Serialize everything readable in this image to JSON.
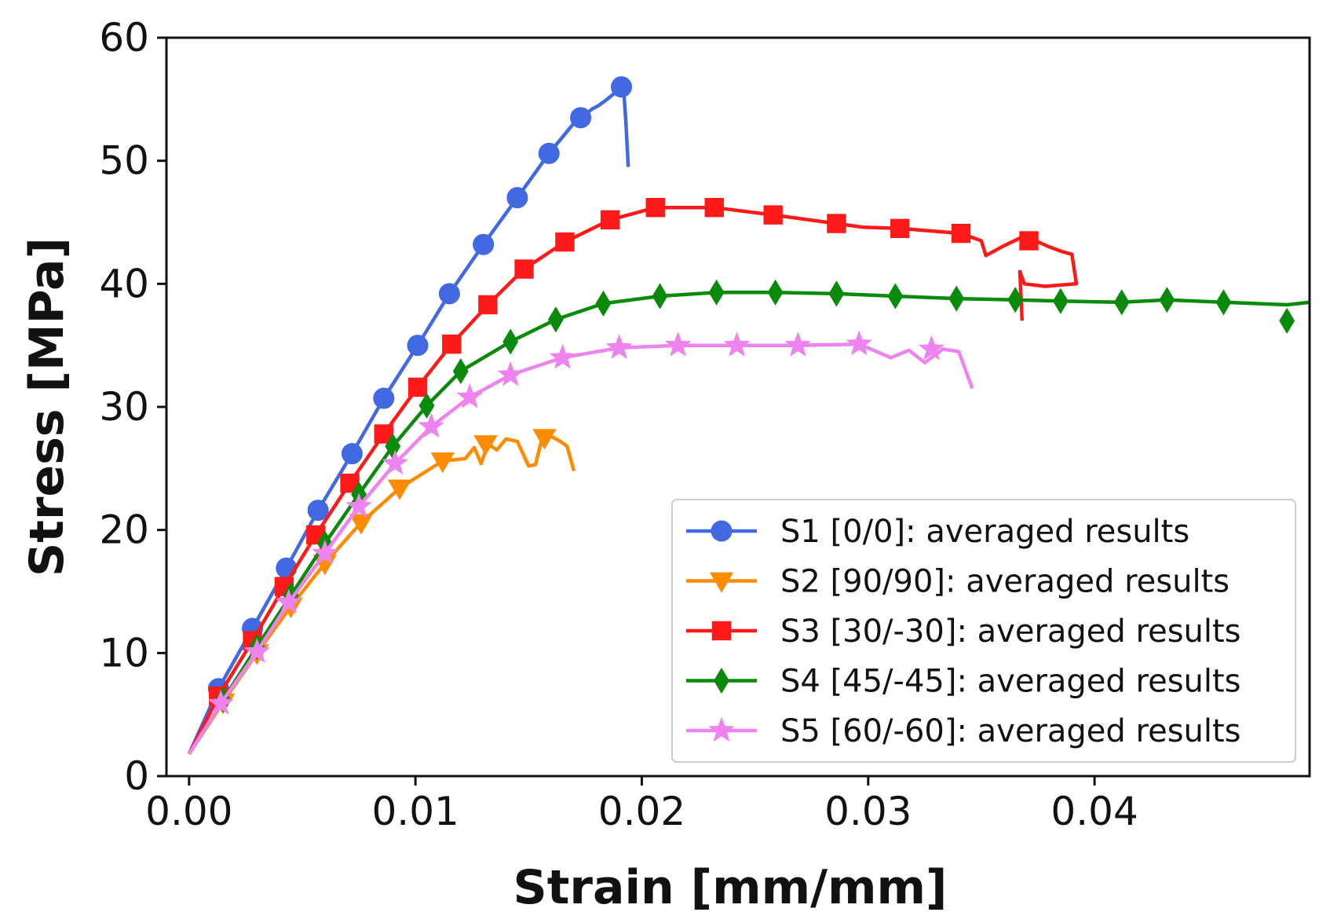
{
  "chart_data": {
    "type": "line",
    "title": "",
    "xlabel": "Strain [mm/mm]",
    "ylabel": "Stress [MPa]",
    "xlim": [
      -0.001,
      0.0495
    ],
    "ylim": [
      0,
      60
    ],
    "xticks": [
      0.0,
      0.01,
      0.02,
      0.03,
      0.04
    ],
    "xtick_labels": [
      "0.00",
      "0.01",
      "0.02",
      "0.03",
      "0.04"
    ],
    "yticks": [
      0,
      10,
      20,
      30,
      40,
      50,
      60
    ],
    "ytick_labels": [
      "0",
      "10",
      "20",
      "30",
      "40",
      "50",
      "60"
    ],
    "grid": false,
    "legend_position": "lower-right",
    "series": [
      {
        "name": "S1 [0/0]: averaged results",
        "color": "#4169e1",
        "marker": "circle",
        "x": [
          0.0,
          0.0013,
          0.0028,
          0.0043,
          0.0057,
          0.0072,
          0.0086,
          0.0101,
          0.0115,
          0.013,
          0.0145,
          0.0159,
          0.0172,
          0.0176,
          0.0178,
          0.0181,
          0.0184,
          0.0186,
          0.0188,
          0.019,
          0.0191,
          0.0192,
          0.0193,
          0.0194
        ],
        "y": [
          1.8,
          7.1,
          12.0,
          16.9,
          21.6,
          26.2,
          30.7,
          35.0,
          39.2,
          43.2,
          47.0,
          50.6,
          53.5,
          53.9,
          54.2,
          54.5,
          54.9,
          55.2,
          55.5,
          56.0,
          55.6,
          55.8,
          53.0,
          49.5
        ],
        "marker_x": [
          0.0013,
          0.0028,
          0.0043,
          0.0057,
          0.0072,
          0.0086,
          0.0101,
          0.0115,
          0.013,
          0.0145,
          0.0159,
          0.0173,
          0.0191
        ],
        "marker_y": [
          7.1,
          12.0,
          16.9,
          21.6,
          26.2,
          30.7,
          35.0,
          39.2,
          43.2,
          47.0,
          50.6,
          53.5,
          56.0
        ]
      },
      {
        "name": "S2 [90/90]: averaged results",
        "color": "#ff8c00",
        "marker": "triangle-down",
        "x": [
          0.0,
          0.0015,
          0.003,
          0.0045,
          0.006,
          0.0076,
          0.0093,
          0.0112,
          0.0122,
          0.0126,
          0.0129,
          0.0132,
          0.0136,
          0.014,
          0.0145,
          0.015,
          0.0153,
          0.0156,
          0.016,
          0.0164,
          0.0167,
          0.017
        ],
        "y": [
          1.8,
          6.0,
          10.0,
          13.8,
          17.3,
          20.6,
          23.4,
          25.6,
          25.8,
          26.7,
          25.4,
          27.0,
          26.5,
          27.4,
          27.2,
          25.2,
          25.3,
          27.5,
          27.6,
          27.2,
          26.8,
          24.8
        ],
        "marker_x": [
          0.0015,
          0.003,
          0.0045,
          0.006,
          0.0076,
          0.0093,
          0.0112,
          0.0131,
          0.0157
        ],
        "marker_y": [
          6.0,
          10.0,
          13.8,
          17.3,
          20.6,
          23.4,
          25.6,
          27.0,
          27.5
        ]
      },
      {
        "name": "S3 [30/-30]: averaged results",
        "color": "#ff1a1a",
        "marker": "square",
        "x": [
          0.0,
          0.0013,
          0.0028,
          0.0042,
          0.0056,
          0.0071,
          0.0086,
          0.0101,
          0.0116,
          0.0132,
          0.0148,
          0.0166,
          0.0186,
          0.0206,
          0.0232,
          0.0258,
          0.0286,
          0.0298,
          0.0314,
          0.0341,
          0.035,
          0.0352,
          0.036,
          0.0368,
          0.0374,
          0.038,
          0.0386,
          0.039,
          0.0392,
          0.0378,
          0.0369,
          0.0367,
          0.0368
        ],
        "y": [
          1.8,
          6.5,
          11.0,
          15.4,
          19.6,
          23.8,
          27.8,
          31.6,
          35.1,
          38.3,
          41.2,
          43.4,
          45.2,
          46.2,
          46.2,
          45.6,
          44.9,
          44.6,
          44.5,
          44.1,
          43.5,
          42.3,
          43.1,
          43.8,
          43.5,
          43.0,
          42.6,
          42.4,
          40.0,
          39.8,
          40.0,
          41.0,
          37.0
        ],
        "marker_x": [
          0.0013,
          0.0028,
          0.0042,
          0.0056,
          0.0071,
          0.0086,
          0.0101,
          0.0116,
          0.0132,
          0.0148,
          0.0166,
          0.0186,
          0.0206,
          0.0232,
          0.0258,
          0.0286,
          0.0314,
          0.0341,
          0.0371
        ],
        "marker_y": [
          6.5,
          11.0,
          15.4,
          19.6,
          23.8,
          27.8,
          31.6,
          35.1,
          38.3,
          41.2,
          43.4,
          45.2,
          46.2,
          46.2,
          45.6,
          44.9,
          44.5,
          44.1,
          43.5
        ]
      },
      {
        "name": "S4 [45/-45]: averaged results",
        "color": "#0a8a0a",
        "marker": "diamond",
        "x": [
          0.0,
          0.0015,
          0.003,
          0.0045,
          0.006,
          0.0075,
          0.009,
          0.0105,
          0.012,
          0.0142,
          0.0162,
          0.0183,
          0.0208,
          0.0233,
          0.0259,
          0.0286,
          0.0312,
          0.0339,
          0.0365,
          0.0385,
          0.0412,
          0.0432,
          0.0457,
          0.0485,
          0.0495
        ],
        "y": [
          1.8,
          6.2,
          10.5,
          14.7,
          18.9,
          22.9,
          26.8,
          30.1,
          32.9,
          35.3,
          37.1,
          38.4,
          39.0,
          39.3,
          39.3,
          39.2,
          39.0,
          38.8,
          38.7,
          38.6,
          38.5,
          38.7,
          38.5,
          38.3,
          38.5
        ],
        "marker_x": [
          0.0015,
          0.003,
          0.0045,
          0.006,
          0.0075,
          0.009,
          0.0105,
          0.012,
          0.0142,
          0.0162,
          0.0183,
          0.0208,
          0.0233,
          0.0259,
          0.0286,
          0.0312,
          0.0339,
          0.0365,
          0.0385,
          0.0412,
          0.0432,
          0.0457,
          0.0485
        ],
        "marker_y": [
          6.2,
          10.5,
          14.7,
          18.9,
          22.9,
          26.8,
          30.1,
          32.9,
          35.3,
          37.1,
          38.4,
          39.0,
          39.3,
          39.3,
          39.2,
          39.0,
          38.8,
          38.7,
          38.6,
          38.5,
          38.7,
          38.5,
          37.0
        ]
      },
      {
        "name": "S5 [60/-60]: averaged results",
        "color": "#ee82ee",
        "marker": "star",
        "x": [
          0.0,
          0.0014,
          0.003,
          0.0044,
          0.006,
          0.0075,
          0.0091,
          0.0107,
          0.0124,
          0.0142,
          0.0165,
          0.019,
          0.0216,
          0.0242,
          0.0269,
          0.0296,
          0.031,
          0.0318,
          0.0325,
          0.0333,
          0.034,
          0.0343,
          0.0346
        ],
        "y": [
          1.8,
          5.9,
          10.1,
          14.1,
          18.1,
          21.9,
          25.4,
          28.4,
          30.8,
          32.6,
          34.0,
          34.8,
          35.0,
          35.0,
          35.0,
          35.1,
          34.0,
          34.6,
          33.6,
          34.7,
          34.5,
          33.0,
          31.5
        ],
        "marker_x": [
          0.0014,
          0.003,
          0.0044,
          0.006,
          0.0075,
          0.0091,
          0.0107,
          0.0124,
          0.0142,
          0.0165,
          0.019,
          0.0216,
          0.0242,
          0.0269,
          0.0296,
          0.0328
        ],
        "marker_y": [
          5.9,
          10.1,
          14.1,
          18.1,
          21.9,
          25.4,
          28.4,
          30.8,
          32.6,
          34.0,
          34.8,
          35.0,
          35.0,
          35.0,
          35.1,
          34.7
        ]
      }
    ]
  }
}
